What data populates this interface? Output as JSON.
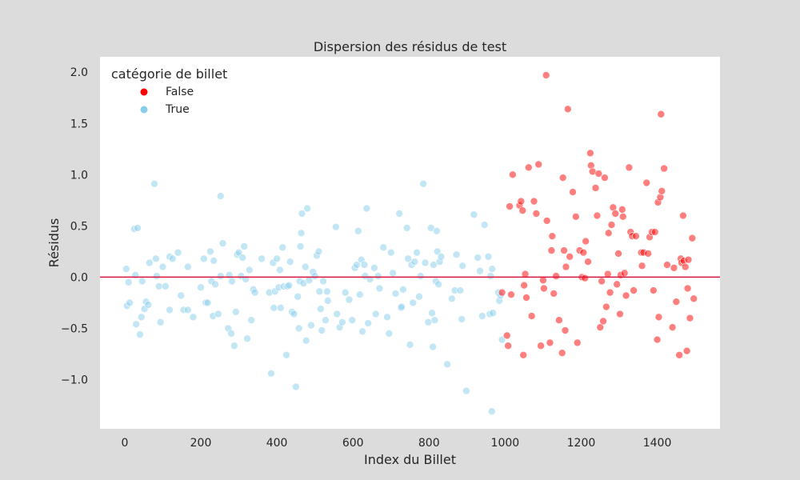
{
  "chart_data": {
    "type": "scatter",
    "title": "Dispersion des résidus de test",
    "xlabel": "Index du Billet",
    "ylabel": "Résidus",
    "xlim": [
      -65,
      1565
    ],
    "ylim": [
      -1.48,
      2.15
    ],
    "xticks": [
      0,
      200,
      400,
      600,
      800,
      1000,
      1200,
      1400
    ],
    "yticks": [
      -1.0,
      -0.5,
      0.0,
      0.5,
      1.0,
      1.5,
      2.0
    ],
    "ytick_labels": [
      "−1.0",
      "−0.5",
      "0.0",
      "0.5",
      "1.0",
      "1.5",
      "2.0"
    ],
    "grid": false,
    "reference_line": {
      "y": 0,
      "color": "#dc143c"
    },
    "legend": {
      "title": "catégorie de billet",
      "placement": "top-left",
      "entries": [
        {
          "label": "False",
          "color": "#ff0000"
        },
        {
          "label": "True",
          "color": "#87ceeb"
        }
      ]
    },
    "series": [
      {
        "name": "True",
        "color": "#87ceeb",
        "opacity": 0.5,
        "points": [
          [
            4,
            0.08
          ],
          [
            6,
            -0.28
          ],
          [
            10,
            -0.05
          ],
          [
            13,
            -0.25
          ],
          [
            25,
            0.47
          ],
          [
            28,
            0.02
          ],
          [
            30,
            -0.46
          ],
          [
            34,
            0.48
          ],
          [
            40,
            -0.56
          ],
          [
            44,
            -0.39
          ],
          [
            46,
            -0.04
          ],
          [
            52,
            -0.31
          ],
          [
            56,
            -0.24
          ],
          [
            62,
            -0.27
          ],
          [
            65,
            0.14
          ],
          [
            78,
            0.91
          ],
          [
            82,
            0.18
          ],
          [
            84,
            0.01
          ],
          [
            90,
            -0.09
          ],
          [
            94,
            -0.44
          ],
          [
            100,
            0.1
          ],
          [
            107,
            -0.09
          ],
          [
            118,
            -0.32
          ],
          [
            118,
            0.2
          ],
          [
            126,
            0.18
          ],
          [
            140,
            0.24
          ],
          [
            148,
            -0.18
          ],
          [
            155,
            -0.32
          ],
          [
            166,
            -0.32
          ],
          [
            166,
            0.1
          ],
          [
            180,
            -0.39
          ],
          [
            200,
            -0.1
          ],
          [
            208,
            0.18
          ],
          [
            213,
            -0.25
          ],
          [
            218,
            -0.25
          ],
          [
            225,
            0.25
          ],
          [
            228,
            -0.04
          ],
          [
            232,
            -0.38
          ],
          [
            234,
            0.16
          ],
          [
            238,
            -0.07
          ],
          [
            246,
            -0.36
          ],
          [
            252,
            0.79
          ],
          [
            252,
            0.01
          ],
          [
            258,
            0.33
          ],
          [
            272,
            -0.5
          ],
          [
            275,
            0.02
          ],
          [
            280,
            -0.55
          ],
          [
            282,
            -0.04
          ],
          [
            288,
            -0.67
          ],
          [
            292,
            -0.34
          ],
          [
            296,
            0.22
          ],
          [
            300,
            0.24
          ],
          [
            306,
            0.01
          ],
          [
            310,
            0.19
          ],
          [
            314,
            0.3
          ],
          [
            318,
            -0.02
          ],
          [
            322,
            -0.6
          ],
          [
            328,
            0.07
          ],
          [
            333,
            -0.42
          ],
          [
            338,
            -0.12
          ],
          [
            342,
            -0.15
          ],
          [
            360,
            0.18
          ],
          [
            380,
            -0.15
          ],
          [
            385,
            -0.94
          ],
          [
            390,
            0.14
          ],
          [
            392,
            -0.3
          ],
          [
            395,
            -0.14
          ],
          [
            400,
            0.18
          ],
          [
            405,
            -0.1
          ],
          [
            408,
            0.07
          ],
          [
            410,
            -0.3
          ],
          [
            415,
            0.29
          ],
          [
            418,
            -0.09
          ],
          [
            425,
            -0.76
          ],
          [
            428,
            -0.09
          ],
          [
            432,
            -0.08
          ],
          [
            435,
            0.15
          ],
          [
            440,
            -0.34
          ],
          [
            445,
            -0.36
          ],
          [
            450,
            -1.07
          ],
          [
            455,
            -0.19
          ],
          [
            458,
            -0.5
          ],
          [
            460,
            -0.04
          ],
          [
            462,
            0.3
          ],
          [
            464,
            0.43
          ],
          [
            466,
            0.62
          ],
          [
            470,
            -0.06
          ],
          [
            475,
            0.1
          ],
          [
            477,
            -0.62
          ],
          [
            480,
            0.67
          ],
          [
            485,
            -0.03
          ],
          [
            490,
            -0.47
          ],
          [
            495,
            0.05
          ],
          [
            500,
            0.01
          ],
          [
            505,
            0.21
          ],
          [
            510,
            0.25
          ],
          [
            512,
            -0.14
          ],
          [
            515,
            -0.31
          ],
          [
            518,
            -0.52
          ],
          [
            522,
            -0.04
          ],
          [
            528,
            -0.42
          ],
          [
            532,
            -0.14
          ],
          [
            534,
            -0.23
          ],
          [
            555,
            0.49
          ],
          [
            558,
            -0.36
          ],
          [
            565,
            -0.49
          ],
          [
            572,
            -0.44
          ],
          [
            580,
            -0.15
          ],
          [
            590,
            -0.22
          ],
          [
            598,
            -0.42
          ],
          [
            605,
            0.09
          ],
          [
            610,
            0.12
          ],
          [
            614,
            0.45
          ],
          [
            618,
            -0.17
          ],
          [
            622,
            0.17
          ],
          [
            625,
            -0.53
          ],
          [
            630,
            0.12
          ],
          [
            632,
            0.01
          ],
          [
            636,
            0.67
          ],
          [
            640,
            -0.45
          ],
          [
            645,
            -0.02
          ],
          [
            656,
            0.09
          ],
          [
            660,
            -0.36
          ],
          [
            666,
            0.01
          ],
          [
            670,
            -0.11
          ],
          [
            680,
            0.29
          ],
          [
            690,
            -0.39
          ],
          [
            695,
            -0.55
          ],
          [
            700,
            0.24
          ],
          [
            705,
            0.04
          ],
          [
            712,
            -0.16
          ],
          [
            722,
            0.62
          ],
          [
            726,
            -0.3
          ],
          [
            728,
            -0.29
          ],
          [
            732,
            -0.12
          ],
          [
            742,
            0.48
          ],
          [
            745,
            0.18
          ],
          [
            750,
            -0.66
          ],
          [
            754,
            0.12
          ],
          [
            758,
            -0.25
          ],
          [
            762,
            0.15
          ],
          [
            768,
            0.24
          ],
          [
            774,
            -0.19
          ],
          [
            778,
            0.01
          ],
          [
            785,
            0.91
          ],
          [
            790,
            0.14
          ],
          [
            798,
            -0.44
          ],
          [
            805,
            0.48
          ],
          [
            808,
            -0.35
          ],
          [
            810,
            -0.68
          ],
          [
            812,
            0.12
          ],
          [
            815,
            -0.42
          ],
          [
            818,
            -0.04
          ],
          [
            820,
            0.45
          ],
          [
            822,
            0.25
          ],
          [
            825,
            -0.07
          ],
          [
            828,
            0.15
          ],
          [
            832,
            0.2
          ],
          [
            848,
            -0.85
          ],
          [
            860,
            -0.21
          ],
          [
            868,
            -0.13
          ],
          [
            872,
            0.22
          ],
          [
            882,
            -0.13
          ],
          [
            886,
            -0.41
          ],
          [
            888,
            0.11
          ],
          [
            898,
            -1.11
          ],
          [
            918,
            0.61
          ],
          [
            928,
            0.19
          ],
          [
            934,
            0.06
          ],
          [
            940,
            -0.38
          ],
          [
            946,
            0.51
          ],
          [
            956,
            0.2
          ],
          [
            960,
            -0.36
          ],
          [
            962,
            0.01
          ],
          [
            965,
            -1.31
          ],
          [
            966,
            0.08
          ],
          [
            968,
            -0.35
          ],
          [
            982,
            -0.15
          ],
          [
            985,
            -0.23
          ],
          [
            988,
            -0.18
          ],
          [
            992,
            -0.61
          ]
        ]
      },
      {
        "name": "False",
        "color": "#ff0000",
        "opacity": 0.5,
        "points": [
          [
            992,
            -0.15
          ],
          [
            1005,
            -0.57
          ],
          [
            1008,
            -0.67
          ],
          [
            1012,
            0.69
          ],
          [
            1016,
            -0.17
          ],
          [
            1020,
            1.0
          ],
          [
            1038,
            0.7
          ],
          [
            1042,
            0.74
          ],
          [
            1046,
            0.65
          ],
          [
            1048,
            -0.76
          ],
          [
            1050,
            -0.08
          ],
          [
            1053,
            0.03
          ],
          [
            1056,
            -0.2
          ],
          [
            1062,
            1.07
          ],
          [
            1070,
            -0.38
          ],
          [
            1076,
            0.74
          ],
          [
            1082,
            0.62
          ],
          [
            1088,
            1.1
          ],
          [
            1094,
            -0.67
          ],
          [
            1100,
            -0.03
          ],
          [
            1102,
            -0.11
          ],
          [
            1108,
            1.97
          ],
          [
            1110,
            0.55
          ],
          [
            1118,
            -0.64
          ],
          [
            1122,
            0.26
          ],
          [
            1124,
            0.4
          ],
          [
            1128,
            -0.16
          ],
          [
            1134,
            0.01
          ],
          [
            1142,
            -0.42
          ],
          [
            1150,
            -0.74
          ],
          [
            1152,
            0.97
          ],
          [
            1155,
            0.26
          ],
          [
            1158,
            -0.52
          ],
          [
            1160,
            0.1
          ],
          [
            1165,
            1.64
          ],
          [
            1170,
            0.2
          ],
          [
            1178,
            0.83
          ],
          [
            1186,
            0.59
          ],
          [
            1190,
            -0.64
          ],
          [
            1196,
            0.26
          ],
          [
            1202,
            0.0
          ],
          [
            1206,
            0.24
          ],
          [
            1210,
            -0.01
          ],
          [
            1212,
            0.35
          ],
          [
            1218,
            0.15
          ],
          [
            1224,
            1.21
          ],
          [
            1226,
            1.09
          ],
          [
            1230,
            1.03
          ],
          [
            1238,
            0.87
          ],
          [
            1242,
            0.6
          ],
          [
            1246,
            1.01
          ],
          [
            1250,
            -0.49
          ],
          [
            1254,
            -0.04
          ],
          [
            1258,
            -0.43
          ],
          [
            1262,
            0.97
          ],
          [
            1266,
            -0.29
          ],
          [
            1270,
            0.03
          ],
          [
            1272,
            0.43
          ],
          [
            1276,
            -0.15
          ],
          [
            1280,
            0.51
          ],
          [
            1284,
            0.68
          ],
          [
            1290,
            0.62
          ],
          [
            1294,
            -0.07
          ],
          [
            1298,
            0.23
          ],
          [
            1302,
            -0.36
          ],
          [
            1304,
            0.02
          ],
          [
            1308,
            0.66
          ],
          [
            1310,
            0.59
          ],
          [
            1314,
            0.04
          ],
          [
            1318,
            -0.18
          ],
          [
            1326,
            1.07
          ],
          [
            1330,
            0.44
          ],
          [
            1334,
            0.4
          ],
          [
            1338,
            -0.13
          ],
          [
            1344,
            0.4
          ],
          [
            1358,
            0.24
          ],
          [
            1360,
            0.11
          ],
          [
            1364,
            0.24
          ],
          [
            1372,
            0.92
          ],
          [
            1376,
            0.23
          ],
          [
            1380,
            0.39
          ],
          [
            1386,
            0.44
          ],
          [
            1390,
            -0.13
          ],
          [
            1394,
            0.44
          ],
          [
            1400,
            -0.61
          ],
          [
            1402,
            0.73
          ],
          [
            1404,
            -0.39
          ],
          [
            1408,
            0.78
          ],
          [
            1410,
            1.59
          ],
          [
            1412,
            0.84
          ],
          [
            1418,
            1.06
          ],
          [
            1426,
            0.12
          ],
          [
            1440,
            -0.49
          ],
          [
            1444,
            0.09
          ],
          [
            1450,
            -0.24
          ],
          [
            1458,
            -0.76
          ],
          [
            1462,
            0.18
          ],
          [
            1464,
            0.14
          ],
          [
            1468,
            0.6
          ],
          [
            1470,
            0.16
          ],
          [
            1474,
            0.1
          ],
          [
            1478,
            -0.72
          ],
          [
            1480,
            -0.11
          ],
          [
            1482,
            0.17
          ],
          [
            1486,
            -0.4
          ],
          [
            1492,
            0.38
          ],
          [
            1496,
            -0.21
          ]
        ]
      }
    ]
  }
}
